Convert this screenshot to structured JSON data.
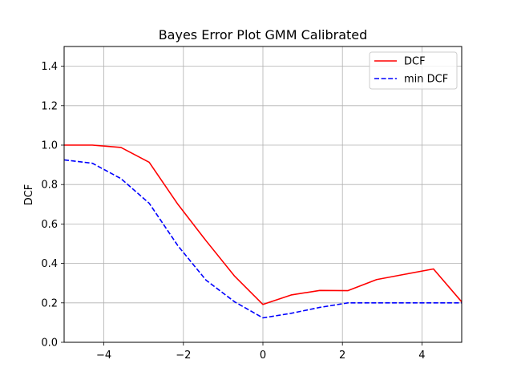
{
  "chart_data": {
    "type": "line",
    "title": "Bayes Error Plot GMM Calibrated",
    "xlabel": "",
    "ylabel": "DCF",
    "xlim": [
      -5,
      5
    ],
    "ylim": [
      0,
      1.5
    ],
    "xticks": [
      -4,
      -2,
      0,
      2,
      4
    ],
    "xtick_labels": [
      "−4",
      "−2",
      "0",
      "2",
      "4"
    ],
    "yticks": [
      0.0,
      0.2,
      0.4,
      0.6,
      0.8,
      1.0,
      1.2,
      1.4
    ],
    "ytick_labels": [
      "0.0",
      "0.2",
      "0.4",
      "0.6",
      "0.8",
      "1.0",
      "1.2",
      "1.4"
    ],
    "grid": true,
    "legend_position": "top-right",
    "series": [
      {
        "name": "DCF",
        "color": "#ff0000",
        "linestyle": "solid",
        "x": [
          -5.0,
          -4.29,
          -3.57,
          -2.86,
          -2.14,
          -1.43,
          -0.71,
          0.0,
          0.71,
          1.43,
          2.14,
          2.86,
          3.57,
          4.29,
          5.0
        ],
        "y": [
          1.0,
          1.0,
          0.988,
          0.913,
          0.7,
          0.515,
          0.335,
          0.192,
          0.24,
          0.263,
          0.262,
          0.318,
          0.345,
          0.372,
          0.205
        ]
      },
      {
        "name": "min DCF",
        "color": "#0000ff",
        "linestyle": "dashed",
        "x": [
          -5.0,
          -4.29,
          -3.57,
          -2.86,
          -2.14,
          -1.43,
          -0.71,
          0.0,
          0.71,
          1.43,
          2.14,
          2.86,
          3.57,
          4.29,
          5.0
        ],
        "y": [
          0.925,
          0.908,
          0.83,
          0.705,
          0.49,
          0.315,
          0.205,
          0.124,
          0.147,
          0.177,
          0.2,
          0.2,
          0.2,
          0.2,
          0.2
        ]
      }
    ]
  }
}
